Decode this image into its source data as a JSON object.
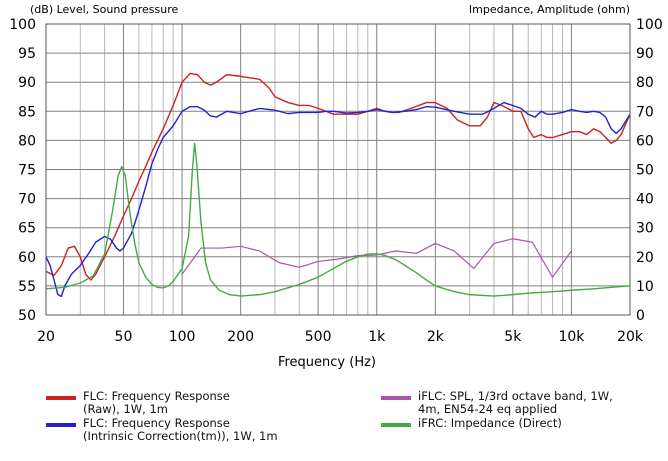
{
  "chart_data": {
    "type": "line",
    "left_axis_label": "(dB)  Level, Sound pressure",
    "right_axis_label": "Impedance, Amplitude (ohm)",
    "xlabel": "Frequency  (Hz)",
    "xscale": "log",
    "xlim": [
      20,
      20000
    ],
    "ylim_left": [
      50,
      100
    ],
    "ylim_right": [
      0,
      100
    ],
    "x_ticks": [
      {
        "v": 20,
        "l": "20"
      },
      {
        "v": 50,
        "l": "50"
      },
      {
        "v": 100,
        "l": "100"
      },
      {
        "v": 200,
        "l": "200"
      },
      {
        "v": 500,
        "l": "500"
      },
      {
        "v": 1000,
        "l": "1k"
      },
      {
        "v": 2000,
        "l": "2k"
      },
      {
        "v": 5000,
        "l": "5k"
      },
      {
        "v": 10000,
        "l": "10k"
      },
      {
        "v": 20000,
        "l": "20k"
      }
    ],
    "y_ticks_left": [
      50,
      55,
      60,
      65,
      70,
      75,
      80,
      85,
      90,
      95,
      100
    ],
    "y_ticks_right": [
      0,
      10,
      20,
      30,
      40,
      50,
      60,
      70,
      80,
      90,
      100
    ],
    "grid": true,
    "legend_placement": "bottom",
    "series": [
      {
        "name": "FLC: Frequency Response\n(Raw), 1W, 1m",
        "color": "#cc2222",
        "axis": "left",
        "points": [
          [
            20,
            57.5
          ],
          [
            22,
            56.8
          ],
          [
            24,
            58.5
          ],
          [
            26,
            61.5
          ],
          [
            28,
            61.8
          ],
          [
            30,
            60
          ],
          [
            32,
            57
          ],
          [
            34,
            56
          ],
          [
            36,
            57
          ],
          [
            40,
            60
          ],
          [
            45,
            63.5
          ],
          [
            50,
            67
          ],
          [
            55,
            70
          ],
          [
            60,
            73
          ],
          [
            65,
            75.5
          ],
          [
            70,
            78
          ],
          [
            80,
            82
          ],
          [
            90,
            86
          ],
          [
            100,
            90
          ],
          [
            110,
            91.5
          ],
          [
            120,
            91.3
          ],
          [
            130,
            90
          ],
          [
            140,
            89.5
          ],
          [
            150,
            90
          ],
          [
            170,
            91.3
          ],
          [
            200,
            91
          ],
          [
            250,
            90.5
          ],
          [
            280,
            89
          ],
          [
            300,
            87.5
          ],
          [
            350,
            86.5
          ],
          [
            400,
            86
          ],
          [
            450,
            86
          ],
          [
            500,
            85.5
          ],
          [
            550,
            85
          ],
          [
            600,
            84.5
          ],
          [
            650,
            84.5
          ],
          [
            700,
            84.5
          ],
          [
            800,
            84.5
          ],
          [
            900,
            85
          ],
          [
            1000,
            85.5
          ],
          [
            1100,
            85
          ],
          [
            1200,
            84.8
          ],
          [
            1300,
            84.8
          ],
          [
            1500,
            85.5
          ],
          [
            1800,
            86.5
          ],
          [
            2000,
            86.5
          ],
          [
            2300,
            85.5
          ],
          [
            2600,
            83.5
          ],
          [
            3000,
            82.5
          ],
          [
            3400,
            82.5
          ],
          [
            3700,
            84
          ],
          [
            4000,
            86.5
          ],
          [
            4400,
            86
          ],
          [
            5000,
            85
          ],
          [
            5500,
            85
          ],
          [
            6000,
            82
          ],
          [
            6400,
            80.5
          ],
          [
            7000,
            81
          ],
          [
            7500,
            80.5
          ],
          [
            8000,
            80.5
          ],
          [
            9000,
            81
          ],
          [
            10000,
            81.5
          ],
          [
            11000,
            81.5
          ],
          [
            12000,
            81
          ],
          [
            13000,
            82
          ],
          [
            14000,
            81.5
          ],
          [
            15000,
            80.5
          ],
          [
            16000,
            79.5
          ],
          [
            17000,
            80
          ],
          [
            18000,
            81
          ],
          [
            20000,
            84.5
          ]
        ]
      },
      {
        "name": "FLC: Frequency Response\n(Intrinsic Correction(tm)), 1W, 1m",
        "color": "#2222cc",
        "axis": "left",
        "points": [
          [
            20,
            60
          ],
          [
            21,
            58.5
          ],
          [
            22,
            56
          ],
          [
            23,
            53.5
          ],
          [
            24,
            53.2
          ],
          [
            25,
            55
          ],
          [
            27,
            57
          ],
          [
            30,
            58.5
          ],
          [
            33,
            60.5
          ],
          [
            36,
            62.5
          ],
          [
            40,
            63.5
          ],
          [
            43,
            63
          ],
          [
            46,
            61.5
          ],
          [
            48,
            61
          ],
          [
            50,
            61.5
          ],
          [
            55,
            64
          ],
          [
            60,
            68
          ],
          [
            65,
            72
          ],
          [
            70,
            76
          ],
          [
            75,
            78.5
          ],
          [
            80,
            80.5
          ],
          [
            90,
            82.5
          ],
          [
            100,
            85
          ],
          [
            110,
            85.8
          ],
          [
            120,
            85.8
          ],
          [
            130,
            85.2
          ],
          [
            140,
            84.2
          ],
          [
            150,
            84
          ],
          [
            170,
            85
          ],
          [
            200,
            84.6
          ],
          [
            250,
            85.5
          ],
          [
            300,
            85.2
          ],
          [
            350,
            84.6
          ],
          [
            400,
            84.8
          ],
          [
            500,
            84.8
          ],
          [
            550,
            85
          ],
          [
            600,
            85
          ],
          [
            700,
            84.7
          ],
          [
            800,
            84.8
          ],
          [
            900,
            85
          ],
          [
            1000,
            85.3
          ],
          [
            1200,
            84.8
          ],
          [
            1400,
            85
          ],
          [
            1600,
            85.3
          ],
          [
            1800,
            85.8
          ],
          [
            2000,
            85.7
          ],
          [
            2500,
            85
          ],
          [
            3000,
            84.5
          ],
          [
            3500,
            84.5
          ],
          [
            4000,
            85.5
          ],
          [
            4500,
            86.5
          ],
          [
            5000,
            86
          ],
          [
            5500,
            85.5
          ],
          [
            6000,
            84.5
          ],
          [
            6500,
            84
          ],
          [
            7000,
            85
          ],
          [
            7500,
            84.5
          ],
          [
            8000,
            84.5
          ],
          [
            9000,
            84.8
          ],
          [
            10000,
            85.3
          ],
          [
            11000,
            85
          ],
          [
            12000,
            84.8
          ],
          [
            13000,
            85
          ],
          [
            14000,
            84.8
          ],
          [
            15000,
            84
          ],
          [
            16000,
            82
          ],
          [
            17000,
            81.2
          ],
          [
            18000,
            82
          ],
          [
            20000,
            84.5
          ]
        ]
      },
      {
        "name": "iFLC: SPL, 1/3rd octave band, 1W,\n4m, EN54-24 eq applied",
        "color": "#aa55aa",
        "axis": "left",
        "points": [
          [
            100,
            57
          ],
          [
            125,
            61.5
          ],
          [
            160,
            61.5
          ],
          [
            200,
            61.8
          ],
          [
            250,
            61
          ],
          [
            315,
            59
          ],
          [
            400,
            58.2
          ],
          [
            500,
            59.2
          ],
          [
            630,
            59.6
          ],
          [
            800,
            60.2
          ],
          [
            1000,
            60.3
          ],
          [
            1250,
            61
          ],
          [
            1600,
            60.6
          ],
          [
            2000,
            62.3
          ],
          [
            2500,
            61
          ],
          [
            3150,
            58
          ],
          [
            4000,
            62.3
          ],
          [
            5000,
            63.1
          ],
          [
            6300,
            62.5
          ],
          [
            8000,
            56.5
          ],
          [
            10000,
            61
          ]
        ]
      },
      {
        "name": "iFRC: Impedance (Direct)",
        "color": "#44aa44",
        "axis": "right",
        "points": [
          [
            20,
            9
          ],
          [
            25,
            9.5
          ],
          [
            30,
            11
          ],
          [
            35,
            13.5
          ],
          [
            40,
            21
          ],
          [
            44,
            36
          ],
          [
            47,
            48
          ],
          [
            49,
            51
          ],
          [
            51,
            48
          ],
          [
            54,
            35
          ],
          [
            57,
            25
          ],
          [
            60,
            18
          ],
          [
            65,
            13
          ],
          [
            70,
            10.5
          ],
          [
            75,
            9.5
          ],
          [
            80,
            9.3
          ],
          [
            85,
            10
          ],
          [
            90,
            11.5
          ],
          [
            100,
            16
          ],
          [
            108,
            27
          ],
          [
            113,
            50
          ],
          [
            116,
            59
          ],
          [
            119,
            52
          ],
          [
            125,
            32
          ],
          [
            132,
            18
          ],
          [
            140,
            12
          ],
          [
            155,
            8.5
          ],
          [
            175,
            7
          ],
          [
            200,
            6.5
          ],
          [
            250,
            7
          ],
          [
            300,
            8
          ],
          [
            400,
            10.5
          ],
          [
            500,
            13
          ],
          [
            600,
            16
          ],
          [
            700,
            18.5
          ],
          [
            800,
            20
          ],
          [
            900,
            21
          ],
          [
            1000,
            21
          ],
          [
            1100,
            20.5
          ],
          [
            1250,
            19
          ],
          [
            1400,
            17
          ],
          [
            1600,
            14.5
          ],
          [
            1800,
            12
          ],
          [
            2000,
            10
          ],
          [
            2500,
            8
          ],
          [
            3000,
            7
          ],
          [
            4000,
            6.5
          ],
          [
            5000,
            7
          ],
          [
            6000,
            7.5
          ],
          [
            8000,
            8
          ],
          [
            10000,
            8.5
          ],
          [
            13000,
            9
          ],
          [
            16000,
            9.5
          ],
          [
            20000,
            10
          ]
        ]
      }
    ]
  }
}
